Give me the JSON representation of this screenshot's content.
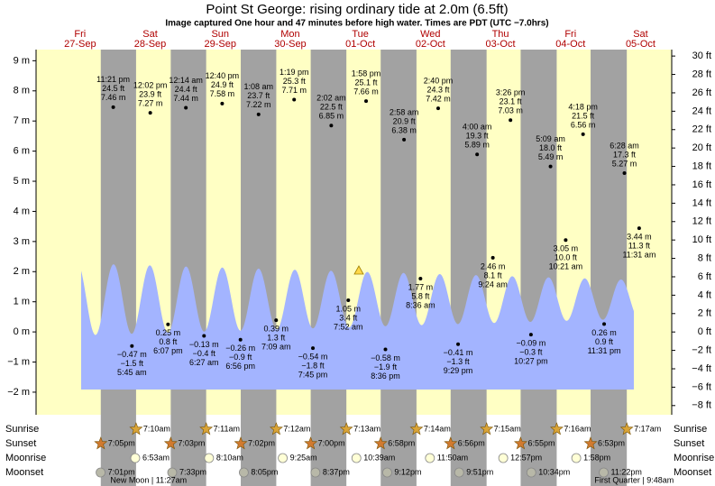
{
  "header": {
    "title": "Point St George: rising  ordinary tide at 2.0m (6.5ft)",
    "subtitle": "Image captured One hour and 47 minutes before high water. Times are PDT (UTC −7.0hrs)"
  },
  "chart_data": {
    "type": "tide",
    "ylim": [
      -2.75,
      9.37
    ],
    "yticks": [
      {
        "value": -2,
        "label": "−2 m"
      },
      {
        "value": -1,
        "label": "−1 m"
      },
      {
        "value": 0,
        "label": "0 m"
      },
      {
        "value": 1,
        "label": "1 m"
      },
      {
        "value": 2,
        "label": "2 m"
      },
      {
        "value": 3,
        "label": "3 m"
      },
      {
        "value": 4,
        "label": "4 m"
      },
      {
        "value": 5,
        "label": "5 m"
      },
      {
        "value": 6,
        "label": "6 m"
      },
      {
        "value": 7,
        "label": "7 m"
      },
      {
        "value": 8,
        "label": "8 m"
      },
      {
        "value": 9,
        "label": "9 m"
      }
    ],
    "y2lim": [
      -9.0,
      30.7
    ],
    "y2ticks": [
      {
        "value": -8,
        "label": "−8 ft"
      },
      {
        "value": -6,
        "label": "−6 ft"
      },
      {
        "value": -4,
        "label": "−4 ft"
      },
      {
        "value": -2,
        "label": "−2 ft"
      },
      {
        "value": 0,
        "label": "0 ft"
      },
      {
        "value": 2,
        "label": "2 ft"
      },
      {
        "value": 4,
        "label": "4 ft"
      },
      {
        "value": 6,
        "label": "6 ft"
      },
      {
        "value": 8,
        "label": "8 ft"
      },
      {
        "value": 10,
        "label": "10 ft"
      },
      {
        "value": 12,
        "label": "12 ft"
      },
      {
        "value": 14,
        "label": "14 ft"
      },
      {
        "value": 16,
        "label": "16 ft"
      },
      {
        "value": 18,
        "label": "18 ft"
      },
      {
        "value": 20,
        "label": "20 ft"
      },
      {
        "value": 22,
        "label": "22 ft"
      },
      {
        "value": 24,
        "label": "24 ft"
      },
      {
        "value": 26,
        "label": "26 ft"
      },
      {
        "value": 28,
        "label": "28 ft"
      },
      {
        "value": 30,
        "label": "30 ft"
      }
    ],
    "row_labels": {
      "sunrise": "Sunrise",
      "sunset": "Sunset",
      "moonrise": "Moonrise",
      "moonset": "Moonset"
    },
    "days": [
      {
        "name": "Fri",
        "date": "27-Sep",
        "sunset": "7:05pm",
        "moonset": "7:01pm",
        "tides": [
          {
            "time": "11:21 pm",
            "m": 7.46,
            "m_label": "7.46 m",
            "ft": 24.5,
            "ft_label": "24.5 ft"
          }
        ]
      },
      {
        "name": "Sat",
        "date": "28-Sep",
        "sunrise": "7:10am",
        "sunset": "7:03pm",
        "moonrise": "6:53am",
        "moonset": "7:33pm",
        "moon_phase": "New Moon | 11:27am",
        "tides": [
          {
            "time": "5:45 am",
            "m": -0.47,
            "m_label": "−0.47 m",
            "ft": -1.5,
            "ft_label": "−1.5 ft"
          },
          {
            "time": "12:02 pm",
            "m": 7.27,
            "m_label": "7.27 m",
            "ft": 23.9,
            "ft_label": "23.9 ft"
          },
          {
            "time": "6:07 pm",
            "m": 0.25,
            "m_label": "0.25 m",
            "ft": 0.8,
            "ft_label": "0.8 ft"
          }
        ]
      },
      {
        "name": "Sun",
        "date": "29-Sep",
        "sunrise": "7:11am",
        "sunset": "7:02pm",
        "moonrise": "8:10am",
        "moonset": "8:05pm",
        "tides": [
          {
            "time": "12:14 am",
            "m": 7.44,
            "m_label": "7.44 m",
            "ft": 24.4,
            "ft_label": "24.4 ft"
          },
          {
            "time": "6:27 am",
            "m": -0.13,
            "m_label": "−0.13 m",
            "ft": -0.4,
            "ft_label": "−0.4 ft"
          },
          {
            "time": "12:40 pm",
            "m": 7.58,
            "m_label": "7.58 m",
            "ft": 24.9,
            "ft_label": "24.9 ft"
          },
          {
            "time": "6:56 pm",
            "m": -0.26,
            "m_label": "−0.26 m",
            "ft": -0.9,
            "ft_label": "−0.9 ft"
          }
        ]
      },
      {
        "name": "Mon",
        "date": "30-Sep",
        "sunrise": "7:12am",
        "sunset": "7:00pm",
        "moonrise": "9:25am",
        "moonset": "8:37pm",
        "tides": [
          {
            "time": "1:08 am",
            "m": 7.22,
            "m_label": "7.22 m",
            "ft": 23.7,
            "ft_label": "23.7 ft"
          },
          {
            "time": "7:09 am",
            "m": 0.39,
            "m_label": "0.39 m",
            "ft": 1.3,
            "ft_label": "1.3 ft"
          },
          {
            "time": "1:19 pm",
            "m": 7.71,
            "m_label": "7.71 m",
            "ft": 25.3,
            "ft_label": "25.3 ft"
          },
          {
            "time": "7:45 pm",
            "m": -0.54,
            "m_label": "−0.54 m",
            "ft": -1.8,
            "ft_label": "−1.8 ft"
          }
        ]
      },
      {
        "name": "Tue",
        "date": "01-Oct",
        "sunrise": "7:13am",
        "sunset": "6:58pm",
        "moonrise": "10:39am",
        "moonset": "9:12pm",
        "tides": [
          {
            "time": "2:02 am",
            "m": 6.85,
            "m_label": "6.85 m",
            "ft": 22.5,
            "ft_label": "22.5 ft"
          },
          {
            "time": "7:52 am",
            "m": 1.05,
            "m_label": "1.05 m",
            "ft": 3.4,
            "ft_label": "3.4 ft"
          },
          {
            "time": "1:58 pm",
            "m": 7.66,
            "m_label": "7.66 m",
            "ft": 25.1,
            "ft_label": "25.1 ft"
          },
          {
            "time": "8:36 pm",
            "m": -0.58,
            "m_label": "−0.58 m",
            "ft": -1.9,
            "ft_label": "−1.9 ft"
          }
        ]
      },
      {
        "name": "Wed",
        "date": "02-Oct",
        "sunrise": "7:14am",
        "sunset": "6:56pm",
        "moonrise": "11:50am",
        "moonset": "9:51pm",
        "tides": [
          {
            "time": "2:58 am",
            "m": 6.38,
            "m_label": "6.38 m",
            "ft": 20.9,
            "ft_label": "20.9 ft"
          },
          {
            "time": "8:36 am",
            "m": 1.77,
            "m_label": "1.77 m",
            "ft": 5.8,
            "ft_label": "5.8 ft"
          },
          {
            "time": "2:40 pm",
            "m": 7.42,
            "m_label": "7.42 m",
            "ft": 24.3,
            "ft_label": "24.3 ft"
          },
          {
            "time": "9:29 pm",
            "m": -0.41,
            "m_label": "−0.41 m",
            "ft": -1.3,
            "ft_label": "−1.3 ft"
          }
        ]
      },
      {
        "name": "Thu",
        "date": "03-Oct",
        "sunrise": "7:15am",
        "sunset": "6:55pm",
        "moonrise": "12:57pm",
        "moonset": "10:34pm",
        "tides": [
          {
            "time": "4:00 am",
            "m": 5.89,
            "m_label": "5.89 m",
            "ft": 19.3,
            "ft_label": "19.3 ft"
          },
          {
            "time": "9:24 am",
            "m": 2.46,
            "m_label": "2.46 m",
            "ft": 8.1,
            "ft_label": "8.1 ft"
          },
          {
            "time": "3:26 pm",
            "m": 7.03,
            "m_label": "7.03 m",
            "ft": 23.1,
            "ft_label": "23.1 ft"
          },
          {
            "time": "10:27 pm",
            "m": -0.09,
            "m_label": "−0.09 m",
            "ft": -0.3,
            "ft_label": "−0.3 ft"
          }
        ]
      },
      {
        "name": "Fri",
        "date": "04-Oct",
        "sunrise": "7:16am",
        "sunset": "6:53pm",
        "moonrise": "1:58pm",
        "moonset": "11:22pm",
        "tides": [
          {
            "time": "5:09 am",
            "m": 5.49,
            "m_label": "5.49 m",
            "ft": 18.0,
            "ft_label": "18.0 ft"
          },
          {
            "time": "10:21 am",
            "m": 3.05,
            "m_label": "3.05 m",
            "ft": 10.0,
            "ft_label": "10.0 ft"
          },
          {
            "time": "4:18 pm",
            "m": 6.56,
            "m_label": "6.56 m",
            "ft": 21.5,
            "ft_label": "21.5 ft"
          },
          {
            "time": "11:31 pm",
            "m": 0.26,
            "m_label": "0.26 m",
            "ft": 0.9,
            "ft_label": "0.9 ft"
          }
        ]
      },
      {
        "name": "Sat",
        "date": "05-Oct",
        "sunrise": "7:17am",
        "moon_phase": "First Quarter | 9:48am",
        "tides": [
          {
            "time": "6:28 am",
            "m": 5.27,
            "m_label": "5.27 m",
            "ft": 17.3,
            "ft_label": "17.3 ft"
          },
          {
            "time": "11:31 am",
            "m": 3.44,
            "m_label": "3.44 m",
            "ft": 11.3,
            "ft_label": "11.3 ft"
          }
        ]
      }
    ]
  }
}
